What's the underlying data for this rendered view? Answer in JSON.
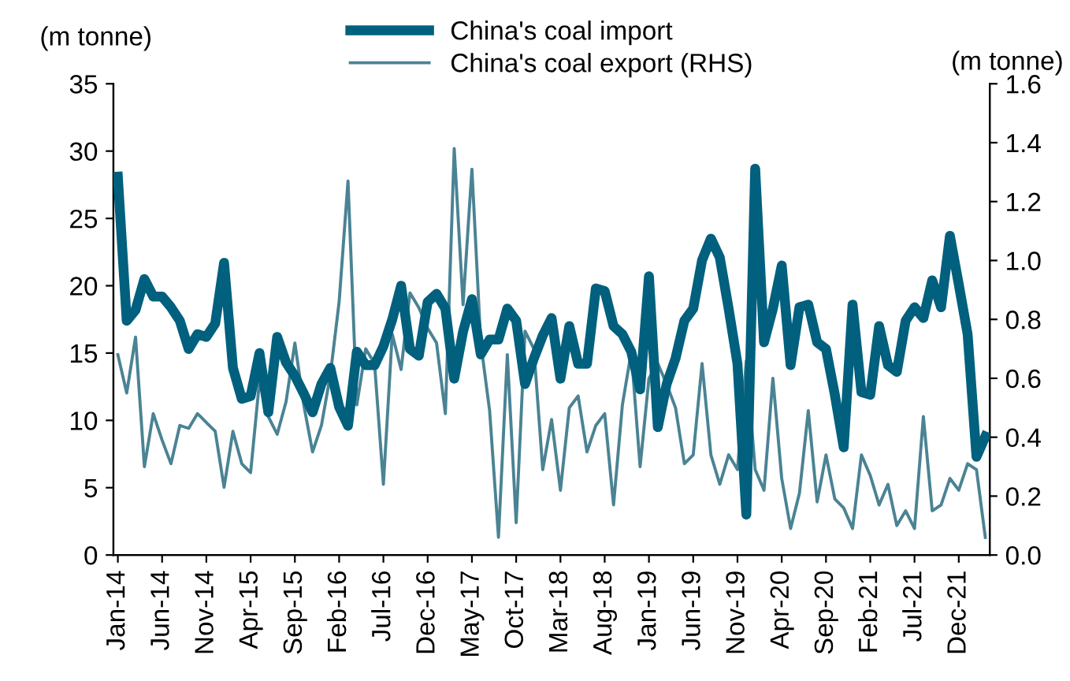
{
  "chart_data": {
    "type": "line",
    "ylabel": "(m tonne)",
    "y2label": "(m tonne)",
    "categories": [
      "Jan-14",
      null,
      null,
      null,
      null,
      "Jun-14",
      null,
      null,
      null,
      null,
      "Nov-14",
      null,
      null,
      null,
      null,
      "Apr-15",
      null,
      null,
      null,
      null,
      "Sep-15",
      null,
      null,
      null,
      null,
      "Feb-16",
      null,
      null,
      null,
      null,
      "Jul-16",
      null,
      null,
      null,
      null,
      "Dec-16",
      null,
      null,
      null,
      null,
      "May-17",
      null,
      null,
      null,
      null,
      "Oct-17",
      null,
      null,
      null,
      null,
      "Mar-18",
      null,
      null,
      null,
      null,
      "Aug-18",
      null,
      null,
      null,
      null,
      "Jan-19",
      null,
      null,
      null,
      null,
      "Jun-19",
      null,
      null,
      null,
      null,
      "Nov-19",
      null,
      null,
      null,
      null,
      "Apr-20",
      null,
      null,
      null,
      null,
      "Sep-20",
      null,
      null,
      null,
      null,
      "Feb-21",
      null,
      null,
      null,
      null,
      "Jul-21",
      null,
      null,
      null,
      null,
      "Dec-21",
      null,
      null,
      null
    ],
    "series": [
      {
        "name": "China's coal import",
        "color": "#00607e",
        "values": [
          28.1,
          17.4,
          18.2,
          20.5,
          19.2,
          19.2,
          18.4,
          17.4,
          15.3,
          16.4,
          16.2,
          17.2,
          21.7,
          13.9,
          11.6,
          11.8,
          15.0,
          10.6,
          16.2,
          14.3,
          13.3,
          12.0,
          10.6,
          12.7,
          13.9,
          11.0,
          9.6,
          15.1,
          14.1,
          14.1,
          15.5,
          17.5,
          20.0,
          15.3,
          14.8,
          18.8,
          19.4,
          18.3,
          13.1,
          16.6,
          19.0,
          14.9,
          16.0,
          16.0,
          18.3,
          17.4,
          12.7,
          14.6,
          16.3,
          17.6,
          13.1,
          17.0,
          14.2,
          14.2,
          19.8,
          19.6,
          17.0,
          16.4,
          15.1,
          12.3,
          20.7,
          9.5,
          12.7,
          14.6,
          17.4,
          18.3,
          21.9,
          23.5,
          22.1,
          18.3,
          14.2,
          3.0,
          28.7,
          15.8,
          18.3,
          21.5,
          14.1,
          18.4,
          18.6,
          15.8,
          15.3,
          11.9,
          8.0,
          18.6,
          12.1,
          11.9,
          17.0,
          14.1,
          13.6,
          17.4,
          18.4,
          17.6,
          20.4,
          18.4,
          23.7,
          20.1,
          16.4,
          7.3,
          8.8
        ]
      },
      {
        "name": "China's coal export (RHS)",
        "color": "#4a8394",
        "axis": "y2",
        "values": [
          0.68,
          0.55,
          0.74,
          0.3,
          0.48,
          0.39,
          0.31,
          0.44,
          0.43,
          0.48,
          0.45,
          0.42,
          0.23,
          0.42,
          0.31,
          0.28,
          0.59,
          0.47,
          0.41,
          0.52,
          0.72,
          0.51,
          0.35,
          0.44,
          0.61,
          0.86,
          1.27,
          0.51,
          0.7,
          0.65,
          0.24,
          0.75,
          0.63,
          0.89,
          0.84,
          0.77,
          0.72,
          0.48,
          1.38,
          0.85,
          1.31,
          0.72,
          0.49,
          0.06,
          0.68,
          0.11,
          0.76,
          0.7,
          0.29,
          0.46,
          0.22,
          0.5,
          0.54,
          0.35,
          0.44,
          0.48,
          0.17,
          0.51,
          0.69,
          0.3,
          0.6,
          0.65,
          0.58,
          0.5,
          0.31,
          0.34,
          0.65,
          0.34,
          0.24,
          0.34,
          0.29,
          0.66,
          0.29,
          0.22,
          0.6,
          0.26,
          0.09,
          0.21,
          0.49,
          0.18,
          0.34,
          0.19,
          0.16,
          0.09,
          0.34,
          0.27,
          0.17,
          0.24,
          0.1,
          0.15,
          0.09,
          0.47,
          0.15,
          0.17,
          0.26,
          0.22,
          0.31,
          0.29,
          0.06
        ]
      }
    ],
    "ylim": [
      0,
      35
    ],
    "yticks": [
      0,
      5,
      10,
      15,
      20,
      25,
      30,
      35
    ],
    "y2lim": [
      0,
      1.6
    ],
    "y2ticks": [
      {
        "value": 0,
        "label": "0.0"
      },
      {
        "value": 0.2,
        "label": "0.2"
      },
      {
        "value": 0.4,
        "label": "0.4"
      },
      {
        "value": 0.6,
        "label": "0.6"
      },
      {
        "value": 0.8,
        "label": "0.8"
      },
      {
        "value": 1.0,
        "label": "1.0"
      },
      {
        "value": 1.2,
        "label": "1.2"
      },
      {
        "value": 1.4,
        "label": "1.4"
      },
      {
        "value": 1.6,
        "label": "1.6"
      }
    ],
    "legend": "top",
    "grid": false,
    "marker": "none"
  }
}
